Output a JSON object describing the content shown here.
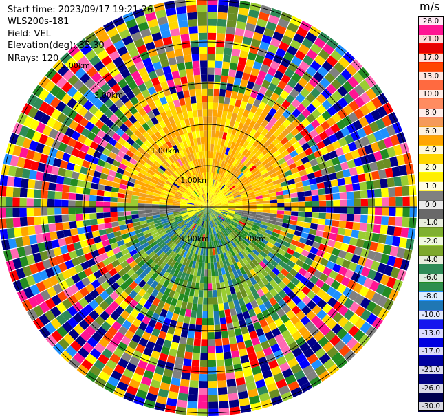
{
  "info": {
    "start_time": "Start time: 2023/09/17 19:21:26",
    "site": "WLS200s-181",
    "field": "Field: VEL",
    "elevation": "Elevation(deg): 35.30",
    "nrays": "NRays: 120"
  },
  "colorbar": {
    "unit": "m/s",
    "bands": [
      {
        "color": "#ff69b4",
        "label": "26.0"
      },
      {
        "color": "#ff1493",
        "label": ""
      },
      {
        "color": "#ff0000",
        "label": "21.0"
      },
      {
        "color": "#e60000",
        "label": ""
      },
      {
        "color": "#ff2a00",
        "label": "17.0"
      },
      {
        "color": "#ff4500",
        "label": ""
      },
      {
        "color": "#ff5a2a",
        "label": "13.0"
      },
      {
        "color": "#ff6a40",
        "label": ""
      },
      {
        "color": "#ff7f50",
        "label": "10.0"
      },
      {
        "color": "#ff8c60",
        "label": ""
      },
      {
        "color": "#fa8a6a",
        "label": "8.0"
      },
      {
        "color": "#f59a5a",
        "label": ""
      },
      {
        "color": "#f0a020",
        "label": "6.0"
      },
      {
        "color": "#ffa500",
        "label": ""
      },
      {
        "color": "#ffcc00",
        "label": "4.0"
      },
      {
        "color": "#ffd700",
        "label": ""
      },
      {
        "color": "#ffff00",
        "label": "2.0"
      },
      {
        "color": "#ffee00",
        "label": ""
      },
      {
        "color": "#fff044",
        "label": "1.0"
      },
      {
        "color": "#808080",
        "label": ""
      },
      {
        "color": "#707070",
        "label": "0.0"
      },
      {
        "color": "#696969",
        "label": ""
      },
      {
        "color": "#6b8e23",
        "label": "-1.0"
      },
      {
        "color": "#7fb030",
        "label": ""
      },
      {
        "color": "#9acd32",
        "label": "-2.0"
      },
      {
        "color": "#7ea82c",
        "label": ""
      },
      {
        "color": "#6b8e23",
        "label": "-4.0"
      },
      {
        "color": "#2e8b57",
        "label": ""
      },
      {
        "color": "#228b22",
        "label": "-6.0"
      },
      {
        "color": "#2f8f4f",
        "label": ""
      },
      {
        "color": "#1e90ff",
        "label": "-8.0"
      },
      {
        "color": "#1f77b4",
        "label": ""
      },
      {
        "color": "#4169e1",
        "label": "-10.0"
      },
      {
        "color": "#1515ee",
        "label": ""
      },
      {
        "color": "#0000ff",
        "label": "-13.0"
      },
      {
        "color": "#0000e0",
        "label": ""
      },
      {
        "color": "#0000cd",
        "label": "-17.0"
      },
      {
        "color": "#0000a0",
        "label": ""
      },
      {
        "color": "#00008b",
        "label": "-21.0"
      },
      {
        "color": "#000080",
        "label": ""
      },
      {
        "color": "#000068",
        "label": "-26.0"
      },
      {
        "color": "#000050",
        "label": ""
      },
      {
        "color": "#000040",
        "label": "-30.0"
      }
    ]
  },
  "ring_labels": [
    "1.00km",
    "1.00km",
    "1.00km",
    "1.00km",
    "3.00km",
    "5.00km"
  ],
  "palette_noise": [
    "#ff1493",
    "#ff69b4",
    "#ff0000",
    "#ff4500",
    "#ffa500",
    "#ffff00",
    "#ffd700",
    "#0000ff",
    "#00008b",
    "#1e90ff",
    "#228b22",
    "#9acd32",
    "#808080",
    "#000080",
    "#6b8e23",
    "#2e8b57"
  ],
  "palette_pos": [
    "#ffa500",
    "#ffcc00",
    "#ffd700",
    "#ffff00",
    "#ffa500",
    "#f0a020"
  ],
  "palette_zero": [
    "#808080",
    "#707070",
    "#696969"
  ],
  "palette_neg": [
    "#9acd32",
    "#6b8e23",
    "#228b22",
    "#2e8b57",
    "#7fb030",
    "#1f77b4"
  ]
}
